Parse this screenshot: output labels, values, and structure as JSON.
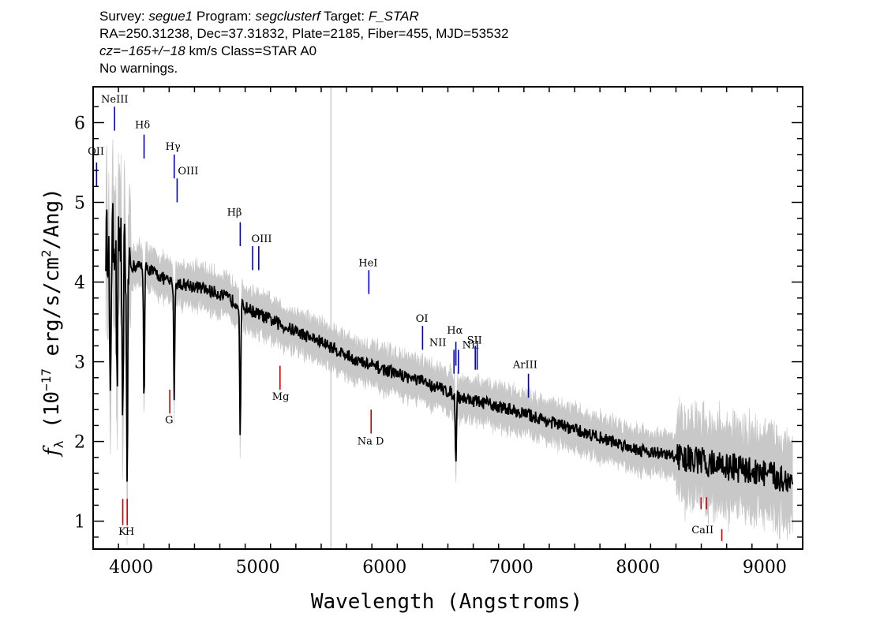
{
  "header": {
    "line1": {
      "survey_label": "Survey: ",
      "survey_value": "segue1",
      "program_label": " Program: ",
      "program_value": "segclusterf",
      "target_label": " Target: ",
      "target_value": "F_STAR"
    },
    "line2": "RA=250.31238, Dec=37.31832, Plate=2185, Fiber=455, MJD=53532",
    "line3": {
      "cz_value": "cz=−165+/−18",
      "cz_rest": " km/s Class=STAR A0"
    },
    "line4": "No warnings."
  },
  "chart_data": {
    "type": "line",
    "xlabel": "Wavelength (Angstroms)",
    "ylabel_main": "f",
    "ylabel_sub": "λ",
    "ylabel_rest": " (10",
    "ylabel_exp": "−17",
    "ylabel_rest2": " erg/s/cm",
    "ylabel_exp2": "2",
    "ylabel_end": "/Ang)",
    "xlim": [
      3700,
      9300
    ],
    "ylim": [
      0.65,
      6.45
    ],
    "xticks": [
      4000,
      5000,
      6000,
      7000,
      8000,
      9000
    ],
    "yticks": [
      1,
      2,
      3,
      4,
      5,
      6
    ],
    "marker_line_x": 5577,
    "colors": {
      "spectrum": "#000000",
      "error_band": "#c8c8c8",
      "emission": "#0000cc",
      "absorption": "#cc0000",
      "sky_line": "#c8c8c8"
    },
    "continuum_points": [
      [
        3800,
        4.5
      ],
      [
        3900,
        4.6
      ],
      [
        4000,
        4.2
      ],
      [
        4100,
        4.2
      ],
      [
        4200,
        4.1
      ],
      [
        4300,
        4.0
      ],
      [
        4500,
        3.95
      ],
      [
        4700,
        3.85
      ],
      [
        5000,
        3.6
      ],
      [
        5200,
        3.45
      ],
      [
        5500,
        3.25
      ],
      [
        5800,
        3.0
      ],
      [
        6000,
        2.9
      ],
      [
        6300,
        2.75
      ],
      [
        6550,
        2.6
      ],
      [
        6600,
        2.55
      ],
      [
        7000,
        2.4
      ],
      [
        7500,
        2.15
      ],
      [
        8000,
        1.9
      ],
      [
        8500,
        1.75
      ],
      [
        9000,
        1.6
      ],
      [
        9200,
        1.5
      ]
    ],
    "absorption_features": [
      {
        "x": 3835,
        "depth": 2.2
      },
      {
        "x": 3889,
        "depth": 2.0
      },
      {
        "x": 3933,
        "depth": 2.6
      },
      {
        "x": 3968,
        "depth": 2.6
      },
      {
        "x": 4102,
        "depth": 1.7
      },
      {
        "x": 4340,
        "depth": 1.4
      },
      {
        "x": 4861,
        "depth": 1.65
      },
      {
        "x": 6563,
        "depth": 0.9
      }
    ],
    "emission_lines": [
      {
        "label": "NeIII",
        "x": 3869,
        "y0": 5.9,
        "y1": 6.2,
        "label_x": 3870,
        "label_y": 6.25
      },
      {
        "label": "OII",
        "x": 3727,
        "y0": 5.2,
        "y1": 5.5,
        "label_x": 3722,
        "label_y": 5.6
      },
      {
        "label": "Hδ",
        "x": 4102,
        "y0": 5.55,
        "y1": 5.85,
        "label_x": 4090,
        "label_y": 5.93
      },
      {
        "label": "Hγ",
        "x": 4340,
        "y0": 5.3,
        "y1": 5.6,
        "label_x": 4330,
        "label_y": 5.66
      },
      {
        "label": "OIII",
        "x": 4363,
        "y0": 5.0,
        "y1": 5.3,
        "label_x": 4450,
        "label_y": 5.35
      },
      {
        "label": "Hβ",
        "x": 4861,
        "y0": 4.45,
        "y1": 4.75,
        "label_x": 4815,
        "label_y": 4.83
      },
      {
        "label": "OIII",
        "x": 4959,
        "y0": 4.15,
        "y1": 4.45,
        "label_x": 5030,
        "label_y": 4.5
      },
      {
        "label": "OIII",
        "x": 5007,
        "y0": 4.15,
        "y1": 4.45,
        "label_x": "",
        "label_y": ""
      },
      {
        "label": "HeI",
        "x": 5876,
        "y0": 3.85,
        "y1": 4.15,
        "label_x": 5870,
        "label_y": 4.2
      },
      {
        "label": "OI",
        "x": 6300,
        "y0": 3.15,
        "y1": 3.45,
        "label_x": 6295,
        "label_y": 3.5
      },
      {
        "label": "NII",
        "x": 6548,
        "y0": 2.85,
        "y1": 3.15,
        "label_x": 6420,
        "label_y": 3.2
      },
      {
        "label": "Hα",
        "x": 6563,
        "y0": 2.95,
        "y1": 3.25,
        "label_x": 6555,
        "label_y": 3.35
      },
      {
        "label": "NII",
        "x": 6583,
        "y0": 2.85,
        "y1": 3.15,
        "label_x": 6680,
        "label_y": 3.17
      },
      {
        "label": "SII",
        "x": 6716,
        "y0": 2.9,
        "y1": 3.2,
        "label_x": 6710,
        "label_y": 3.23
      },
      {
        "label": "SII",
        "x": 6731,
        "y0": 2.9,
        "y1": 3.2,
        "label_x": "",
        "label_y": ""
      },
      {
        "label": "ArIII",
        "x": 7136,
        "y0": 2.55,
        "y1": 2.85,
        "label_x": 7110,
        "label_y": 2.92
      }
    ],
    "absorption_lines": [
      {
        "label": "K",
        "x": 3934,
        "y0": 0.95,
        "y1": 1.28,
        "label_x": 3930,
        "label_y": 0.83
      },
      {
        "label": "H",
        "x": 3969,
        "y0": 0.95,
        "y1": 1.28,
        "label_x": 3990,
        "label_y": 0.83
      },
      {
        "label": "G",
        "x": 4305,
        "y0": 2.35,
        "y1": 2.65,
        "label_x": 4300,
        "label_y": 2.23
      },
      {
        "label": "Mg",
        "x": 5175,
        "y0": 2.65,
        "y1": 2.95,
        "label_x": 5180,
        "label_y": 2.52
      },
      {
        "label": "Na D",
        "x": 5894,
        "y0": 2.1,
        "y1": 2.4,
        "label_x": 5890,
        "label_y": 1.96
      },
      {
        "label": "CaII",
        "x": 8498,
        "y0": 1.15,
        "y1": 1.3,
        "label_x": 8510,
        "label_y": 0.85
      },
      {
        "label": "CaII",
        "x": 8542,
        "y0": 1.15,
        "y1": 1.3,
        "label_x": "",
        "label_y": ""
      },
      {
        "label": "CaII",
        "x": 8662,
        "y0": 0.75,
        "y1": 0.9,
        "label_x": "",
        "label_y": ""
      }
    ]
  }
}
